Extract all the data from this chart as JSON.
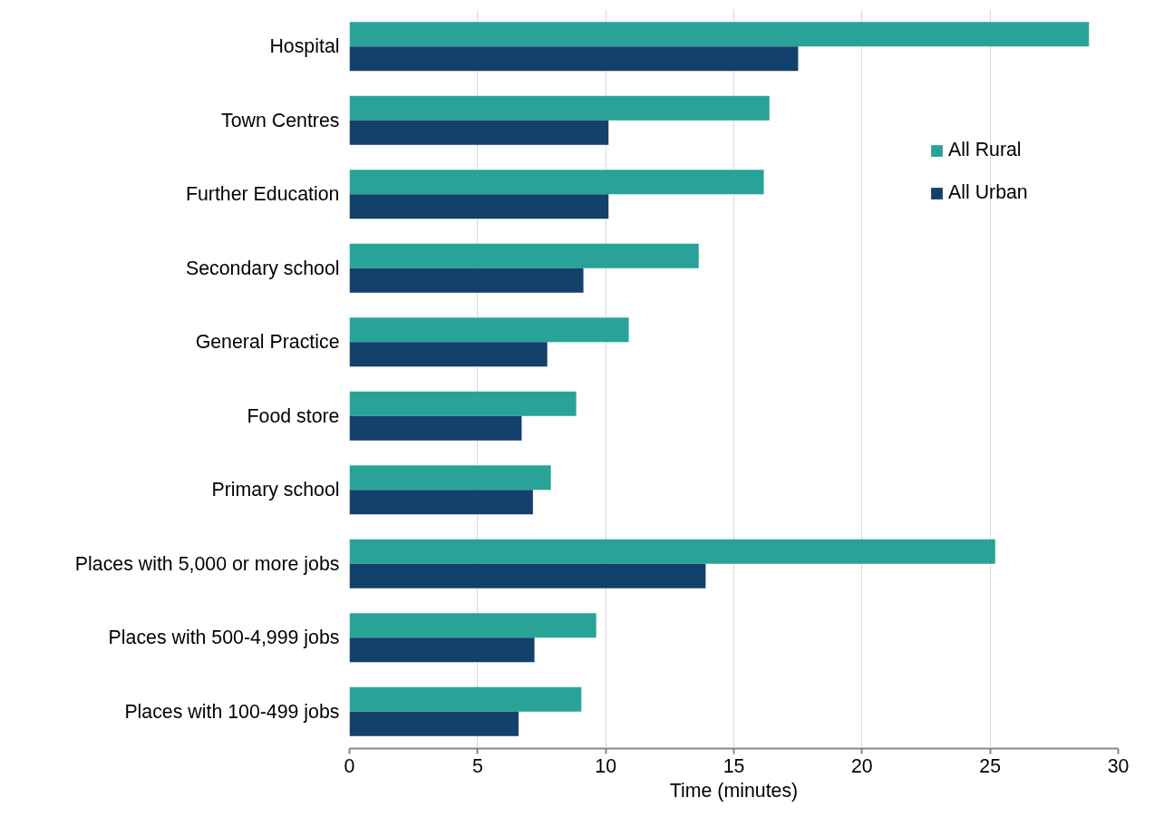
{
  "chart_data": {
    "type": "bar",
    "orientation": "horizontal",
    "xlabel": "Time (minutes)",
    "categories": [
      "Hospital",
      "Town Centres",
      "Further Education",
      "Secondary school",
      "General Practice",
      "Food store",
      "Primary school",
      "Places with 5,000 or more jobs",
      "Places with 500-4,999 jobs",
      "Places with 100-499 jobs"
    ],
    "series": [
      {
        "name": "All Rural",
        "color": "#29a397",
        "values": [
          28.86,
          16.39,
          16.17,
          13.63,
          10.9,
          8.85,
          7.86,
          25.2,
          9.63,
          9.05
        ]
      },
      {
        "name": "All Urban",
        "color": "#13416b",
        "values": [
          17.51,
          10.11,
          10.11,
          9.13,
          7.72,
          6.72,
          7.16,
          13.9,
          7.22,
          6.6
        ]
      }
    ],
    "xlim": [
      0,
      30
    ],
    "xticks": [
      0,
      5,
      10,
      15,
      20,
      25,
      30
    ],
    "grid": "x",
    "legend": "top right"
  }
}
